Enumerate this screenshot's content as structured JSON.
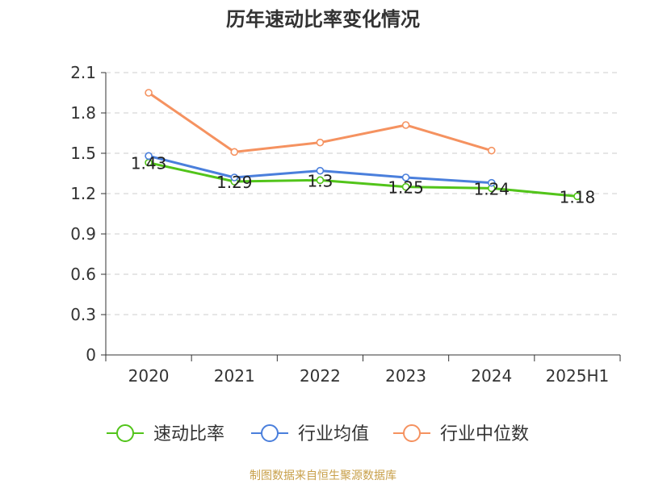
{
  "chart_data": {
    "type": "line",
    "title": "历年速动比率变化情况",
    "xlabel": "",
    "ylabel": "",
    "categories": [
      "2020",
      "2021",
      "2022",
      "2023",
      "2024",
      "2025H1"
    ],
    "y_ticks": [
      "0",
      "0.3",
      "0.6",
      "0.9",
      "1.2",
      "1.5",
      "1.8",
      "2.1"
    ],
    "ylim": [
      0,
      2.1
    ],
    "grid": true,
    "legend_position": "bottom",
    "series": [
      {
        "name": "速动比率",
        "color": "#52c41a",
        "values": [
          1.43,
          1.29,
          1.3,
          1.25,
          1.24,
          1.18
        ],
        "labels": [
          "1.43",
          "1.29",
          "1.3",
          "1.25",
          "1.24",
          "1.18"
        ]
      },
      {
        "name": "行业均值",
        "color": "#4a7fdc",
        "values": [
          1.48,
          1.32,
          1.37,
          1.32,
          1.28,
          null
        ]
      },
      {
        "name": "行业中位数",
        "color": "#f59260",
        "values": [
          1.95,
          1.51,
          1.58,
          1.71,
          1.52,
          null
        ]
      }
    ],
    "source": "制图数据来自恒生聚源数据库"
  }
}
